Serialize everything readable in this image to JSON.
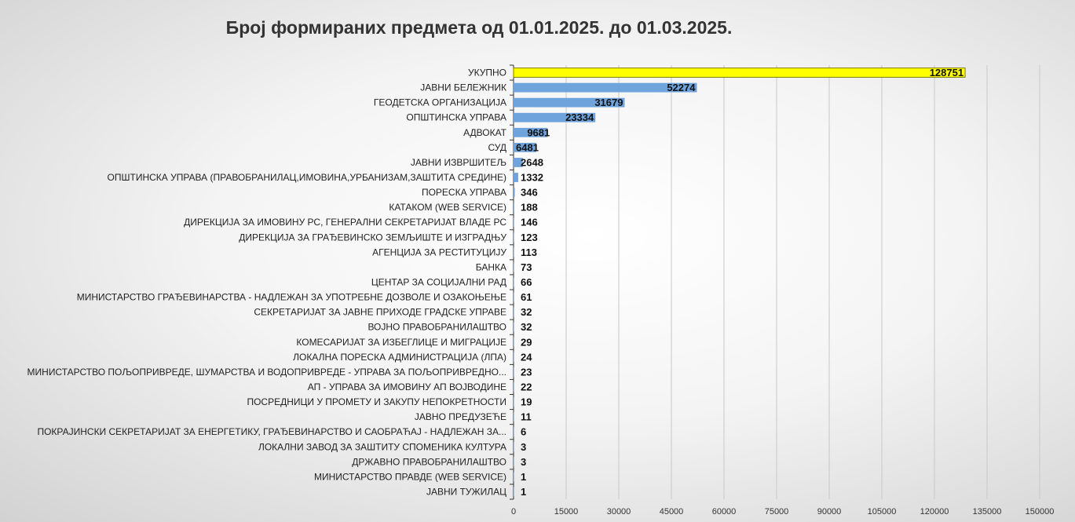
{
  "chart_data": {
    "type": "bar",
    "orientation": "horizontal",
    "title": "Број формираних предмета од 01.01.2025. до 01.03.2025.",
    "xlabel": "",
    "ylabel": "",
    "xlim": [
      0,
      150000
    ],
    "x_ticks": [
      "0",
      "15000",
      "30000",
      "45000",
      "60000",
      "75000",
      "90000",
      "105000",
      "120000",
      "135000",
      "150000"
    ],
    "grid": "vertical",
    "legend": "none",
    "colors": {
      "bar": "#6fa3dc",
      "highlight": "#ffff00",
      "highlight_border": "#7f7f00",
      "grid": "#c8c8c8",
      "axis": "#333333"
    },
    "categories": [
      "УКУПНО",
      "ЈАВНИ БЕЛЕЖНИК",
      "ГЕОДЕТСКА ОРГАНИЗАЦИЈА",
      "ОПШТИНСКА УПРАВА",
      "АДВОКАТ",
      "СУД",
      "ЈАВНИ ИЗВРШИТЕЉ",
      "ОПШТИНСКА УПРАВА (ПРАВОБРАНИЛАЦ,ИМОВИНА,УРБАНИЗАМ,ЗАШТИТА СРЕДИНЕ)",
      "ПОРЕСКА УПРАВА",
      "КАТАКОМ (WEB SERVICE)",
      "ДИРЕКЦИЈА ЗА ИМОВИНУ РС, ГЕНЕРАЛНИ СЕКРЕТАРИЈАТ ВЛАДЕ РС",
      "ДИРЕКЦИЈА ЗА ГРАЂЕВИНСКО ЗЕМЉИШТЕ И ИЗГРАДЊУ",
      "АГЕНЦИЈА ЗА РЕСТИТУЦИЈУ",
      "БАНКА",
      "ЦЕНТАР ЗА СОЦИЈАЛНИ РАД",
      "МИНИСТАРСТВО ГРАЂЕВИНАРСТВА - НАДЛЕЖАН ЗА УПОТРЕБНЕ ДОЗВОЛЕ И ОЗАКОЊЕЊЕ",
      "СЕКРЕТАРИЈАТ ЗА ЈАВНЕ ПРИХОДЕ ГРАДСКЕ УПРАВЕ",
      "ВОЈНО ПРАВОБРАНИЛАШТВО",
      "КОМЕСАРИЈАТ ЗА ИЗБЕГЛИЦЕ И МИГРАЦИЈЕ",
      "ЛОКАЛНА ПОРЕСКА АДМИНИСТРАЦИЈА (ЛПА)",
      "МИНИСТАРСТВО ПОЉОПРИВРЕДЕ, ШУМАРСТВА И ВОДОПРИВРЕДЕ - УПРАВА ЗА ПОЉОПРИВРЕДНО...",
      "АП - УПРАВА ЗА ИМОВИНУ АП ВОЈВОДИНЕ",
      "ПОСРЕДНИЦИ У ПРОМЕТУ И ЗАКУПУ НЕПОКРЕТНОСТИ",
      "ЈАВНО ПРЕДУЗЕЋЕ",
      "ПОКРАЈИНСКИ СЕКРЕТАРИЈАТ ЗА ЕНЕРГЕТИКУ, ГРАЂЕВИНАРСТВО И САОБРАЋАЈ - НАДЛЕЖАН ЗА...",
      "ЛОКАЛНИ ЗАВОД ЗА ЗАШТИТУ СПОМЕНИКА КУЛТУРА",
      "ДРЖАВНО ПРАВОБРАНИЛАШТВО",
      "МИНИСТАРСТВО ПРАВДЕ (WEB SERVICE)",
      "ЈАВНИ ТУЖИЛАЦ"
    ],
    "values": [
      128751,
      52274,
      31679,
      23334,
      9681,
      6481,
      2648,
      1332,
      346,
      188,
      146,
      123,
      113,
      73,
      66,
      61,
      32,
      32,
      29,
      24,
      23,
      22,
      19,
      11,
      6,
      3,
      3,
      1,
      1
    ],
    "value_labels": [
      "128751",
      "52274",
      "31679",
      "23334",
      "9681",
      "6481",
      "2648",
      "1332",
      "346",
      "188",
      "146",
      "123",
      "113",
      "73",
      "66",
      "61",
      "32",
      "32",
      "29",
      "24",
      "23",
      "22",
      "19",
      "11",
      "6",
      "3",
      "3",
      "1",
      "1"
    ],
    "highlighted_category": "УКУПНО"
  }
}
